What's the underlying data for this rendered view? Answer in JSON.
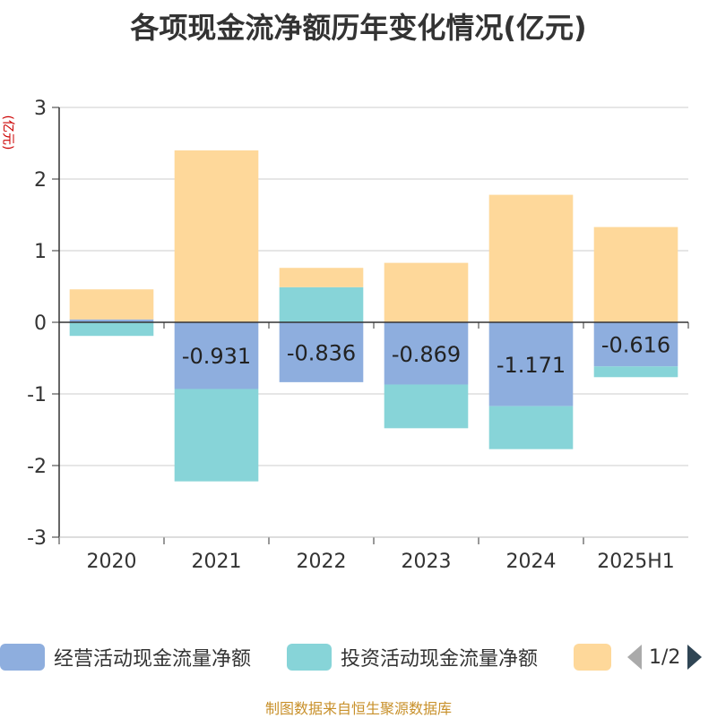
{
  "title": "各项现金流净额历年变化情况(亿元)",
  "unit_label": "(亿元)",
  "source": "制图数据来自恒生聚源数据库",
  "legend": {
    "items": [
      {
        "label": "经营活动现金流量净额",
        "color": "#8eaede"
      },
      {
        "label": "投资活动现金流量净额",
        "color": "#87d4d8"
      },
      {
        "label": "",
        "color": "#fed89a"
      }
    ],
    "page": "1/2"
  },
  "chart_data": {
    "type": "bar",
    "stacked": true,
    "categories": [
      "2020",
      "2021",
      "2022",
      "2023",
      "2024",
      "2025H1"
    ],
    "ylim": [
      -3,
      3
    ],
    "yticks": [
      3,
      2,
      1,
      0,
      -1,
      -2,
      -3
    ],
    "grid": true,
    "series": [
      {
        "name": "经营活动现金流量净额",
        "color": "#8eaede",
        "values": [
          0.04,
          -0.931,
          -0.836,
          -0.869,
          -1.171,
          -0.616
        ],
        "labels": [
          "",
          "-0.931",
          "-0.836",
          "-0.869",
          "-1.171",
          "-0.616"
        ]
      },
      {
        "name": "投资活动现金流量净额",
        "color": "#87d4d8",
        "values": [
          -0.19,
          -1.29,
          0.49,
          -0.61,
          -0.6,
          -0.15
        ]
      },
      {
        "color": "#fed89a",
        "values": [
          0.42,
          2.4,
          0.27,
          0.83,
          1.78,
          1.33
        ]
      }
    ]
  }
}
